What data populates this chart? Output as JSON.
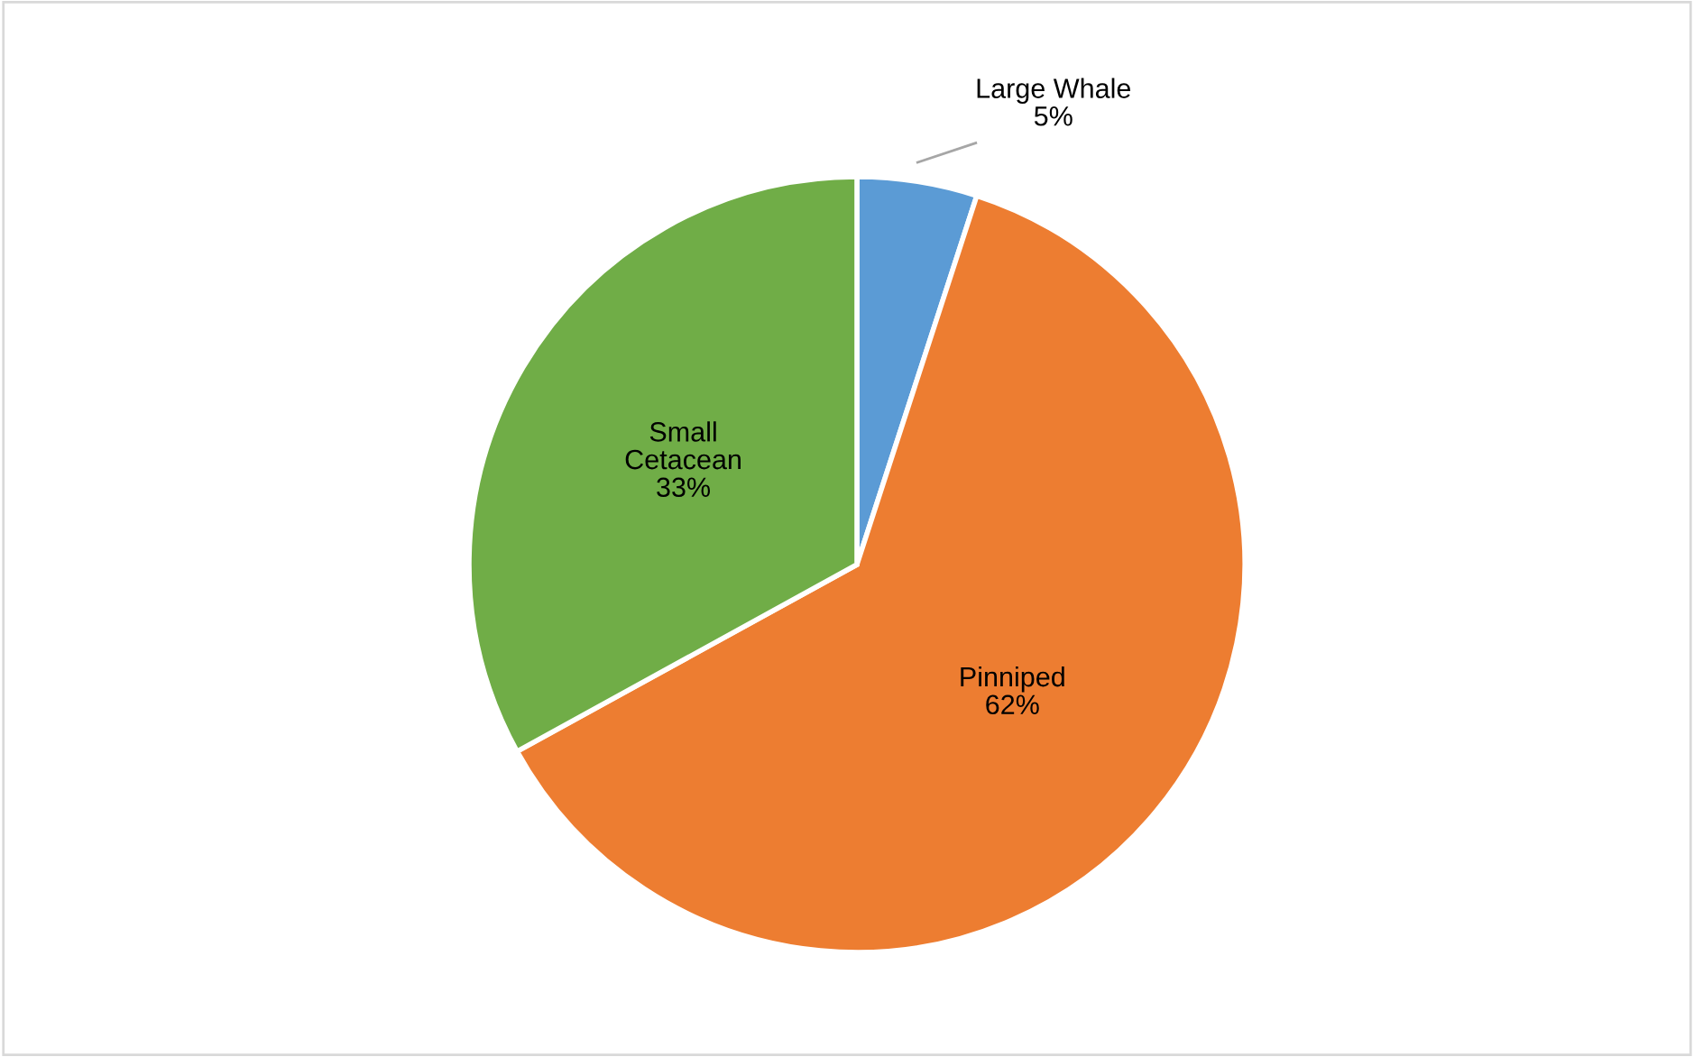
{
  "chart_data": {
    "type": "pie",
    "categories": [
      "Large Whale",
      "Pinniped",
      "Small\nCetacean"
    ],
    "values": [
      5,
      62,
      33
    ],
    "colors": [
      "#5b9bd5",
      "#ed7d31",
      "#70ad47"
    ],
    "value_labels": [
      "5%",
      "62%",
      "33%"
    ],
    "legend": false
  }
}
